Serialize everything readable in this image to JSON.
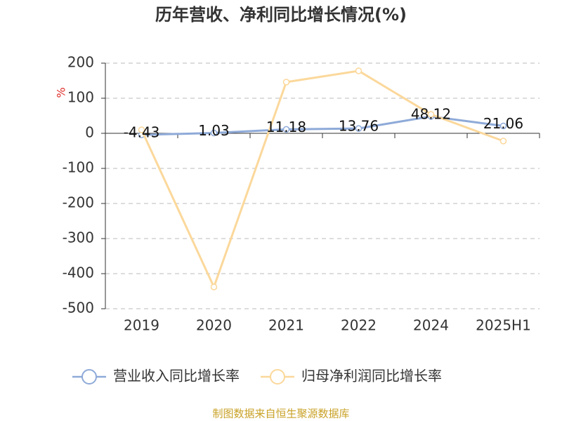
{
  "chart_data": {
    "type": "line",
    "title": "历年营收、净利同比增长情况(%)",
    "y_label": "%",
    "categories": [
      "2019",
      "2020",
      "2021",
      "2022",
      "2024",
      "2025H1"
    ],
    "series": [
      {
        "name": "营业收入同比增长率",
        "color": "#8eaad8",
        "values": [
          -4.43,
          1.03,
          11.18,
          13.76,
          48.12,
          21.06
        ],
        "show_labels": true
      },
      {
        "name": "归母净利润同比增长率",
        "color": "#fbd89b",
        "values": [
          10,
          -438,
          146,
          178,
          54,
          -22
        ],
        "show_labels": false
      }
    ],
    "ylim": [
      -500,
      200
    ],
    "yticks": [
      -500,
      -400,
      -300,
      -200,
      -100,
      0,
      100,
      200
    ],
    "grid": true,
    "source": "制图数据来自恒生聚源数据库"
  }
}
